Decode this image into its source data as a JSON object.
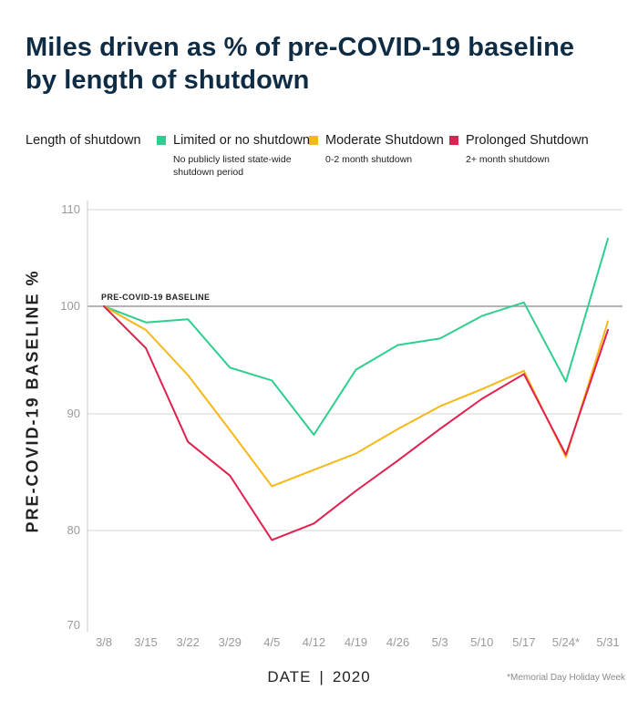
{
  "title": "Miles driven as % of pre-COVID-19 baseline by length of shutdown",
  "legend": {
    "label": "Length of shutdown",
    "items": [
      {
        "name": "Limited or no shutdown",
        "sub": "No publicly listed state-wide shutdown period",
        "color": "#2ecf8e"
      },
      {
        "name": "Moderate Shutdown",
        "sub": "0-2 month shutdown",
        "color": "#f6b817"
      },
      {
        "name": "Prolonged Shutdown",
        "sub": "2+ month shutdown",
        "color": "#e0204f"
      }
    ]
  },
  "axis": {
    "ylabel": "PRE-COVID-19 BASELINE %",
    "xlabel_main": "DATE",
    "xlabel_sep": "|",
    "xlabel_year": "2020"
  },
  "footnote": "*Memorial Day Holiday Week",
  "chart_data": {
    "type": "line",
    "title": "Miles driven as % of pre-COVID-19 baseline by length of shutdown",
    "xlabel": "DATE | 2020",
    "ylabel": "PRE-COVID-19 BASELINE %",
    "categories": [
      "3/8",
      "3/15",
      "3/22",
      "3/29",
      "4/5",
      "4/12",
      "4/19",
      "4/26",
      "5/3",
      "5/10",
      "5/17",
      "5/24*",
      "5/31"
    ],
    "yticks": [
      70,
      80,
      90,
      100,
      110
    ],
    "ylim": [
      70,
      110
    ],
    "grid": true,
    "reference_line": {
      "value": 100,
      "label": "PRE-COVID-19 BASELINE"
    },
    "series": [
      {
        "name": "Limited or no shutdown",
        "color": "#2ecf8e",
        "values": [
          100,
          98.5,
          98.8,
          94.3,
          93.1,
          88.2,
          94.1,
          96.4,
          97.0,
          99.1,
          100.4,
          93.0,
          107.0
        ]
      },
      {
        "name": "Moderate Shutdown",
        "color": "#f6b817",
        "values": [
          100,
          97.8,
          93.6,
          88.6,
          83.8,
          85.2,
          86.6,
          88.7,
          90.7,
          92.3,
          94.0,
          86.3,
          98.6
        ]
      },
      {
        "name": "Prolonged Shutdown",
        "color": "#e0204f",
        "values": [
          100,
          96.1,
          87.6,
          84.7,
          79.0,
          80.6,
          83.4,
          86.0,
          88.7,
          91.4,
          93.7,
          86.5,
          97.8
        ]
      }
    ]
  }
}
